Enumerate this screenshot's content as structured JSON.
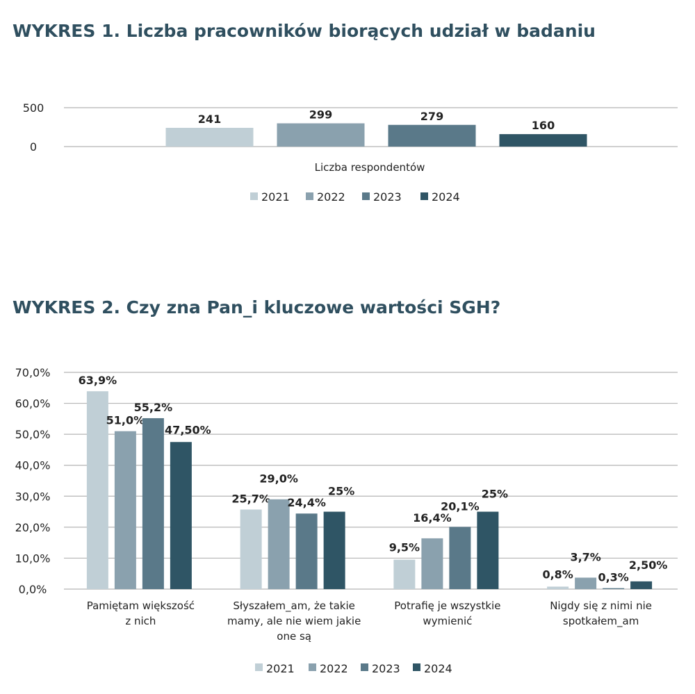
{
  "chart_data": [
    {
      "type": "bar",
      "title": "WYKRES 1. Liczba pracowników biorących udział w badaniu",
      "categories": [
        "Liczba respondentów"
      ],
      "series": [
        {
          "name": "2021",
          "values": [
            241
          ],
          "labels": [
            "241"
          ]
        },
        {
          "name": "2022",
          "values": [
            299
          ],
          "labels": [
            "299"
          ]
        },
        {
          "name": "2023",
          "values": [
            279
          ],
          "labels": [
            "279"
          ]
        },
        {
          "name": "2024",
          "values": [
            160
          ],
          "labels": [
            "160"
          ]
        }
      ],
      "yticks": [
        "0",
        "500"
      ],
      "ylim": [
        0,
        500
      ],
      "grid": true,
      "legend": "bottom",
      "colors": [
        "#c0cfd6",
        "#8aa1ae",
        "#5a7989",
        "#2f5565"
      ]
    },
    {
      "type": "bar",
      "title": "WYKRES 2. Czy zna Pan_i kluczowe wartości SGH?",
      "categories": [
        [
          "Pamiętam większość",
          "z nich"
        ],
        [
          "Słyszałem_am, że takie",
          "mamy, ale nie wiem jakie",
          "one są"
        ],
        [
          "Potrafię je wszystkie",
          "wymienić"
        ],
        [
          "Nigdy się z nimi nie",
          "spotkałem_am"
        ]
      ],
      "series": [
        {
          "name": "2021",
          "values": [
            63.9,
            25.7,
            9.5,
            0.8
          ],
          "labels": [
            "63,9%",
            "25,7%",
            "9,5%",
            "0,8%"
          ]
        },
        {
          "name": "2022",
          "values": [
            51.0,
            29.0,
            16.4,
            3.7
          ],
          "labels": [
            "51,0%",
            "29,0%",
            "16,4%",
            "3,7%"
          ]
        },
        {
          "name": "2023",
          "values": [
            55.2,
            24.4,
            20.1,
            0.3
          ],
          "labels": [
            "55,2%",
            "24,4%",
            "20,1%",
            "0,3%"
          ]
        },
        {
          "name": "2024",
          "values": [
            47.5,
            25,
            25,
            2.5
          ],
          "labels": [
            "47,50%",
            "25%",
            "25%",
            "2,50%"
          ]
        }
      ],
      "yticks": [
        "0,0%",
        "10,0%",
        "20,0%",
        "30,0%",
        "40,0%",
        "50,0%",
        "60,0%",
        "70,0%"
      ],
      "ylim": [
        0,
        70
      ],
      "grid": true,
      "legend": "bottom",
      "colors": [
        "#c0cfd6",
        "#8aa1ae",
        "#5a7989",
        "#2f5565"
      ]
    }
  ]
}
